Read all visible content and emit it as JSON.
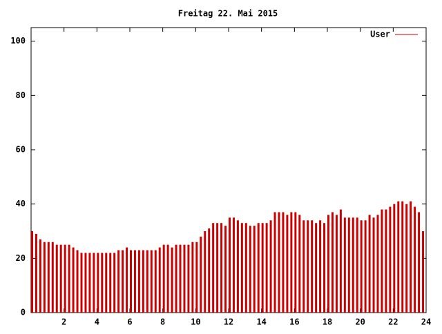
{
  "chart_data": {
    "type": "impulse",
    "title": "Freitag 22. Mai 2015",
    "x": [
      0,
      0.25,
      0.5,
      0.75,
      1,
      1.25,
      1.5,
      1.75,
      2,
      2.25,
      2.5,
      2.75,
      3,
      3.25,
      3.5,
      3.75,
      4,
      4.25,
      4.5,
      4.75,
      5,
      5.25,
      5.5,
      5.75,
      6,
      6.25,
      6.5,
      6.75,
      7,
      7.25,
      7.5,
      7.75,
      8,
      8.25,
      8.5,
      8.75,
      9,
      9.25,
      9.5,
      9.75,
      10,
      10.25,
      10.5,
      10.75,
      11,
      11.25,
      11.5,
      11.75,
      12,
      12.25,
      12.5,
      12.75,
      13,
      13.25,
      13.5,
      13.75,
      14,
      14.25,
      14.5,
      14.75,
      15,
      15.25,
      15.5,
      15.75,
      16,
      16.25,
      16.5,
      16.75,
      17,
      17.25,
      17.5,
      17.75,
      18,
      18.25,
      18.5,
      18.75,
      19,
      19.25,
      19.5,
      19.75,
      20,
      20.25,
      20.5,
      20.75,
      21,
      21.25,
      21.5,
      21.75,
      22,
      22.25,
      22.5,
      22.75,
      23,
      23.25,
      23.5,
      23.75
    ],
    "series": [
      {
        "name": "User",
        "color": "#cc0000",
        "values": [
          30,
          29,
          27,
          26,
          26,
          26,
          25,
          25,
          25,
          25,
          24,
          23,
          22,
          22,
          22,
          22,
          22,
          22,
          22,
          22,
          22,
          23,
          23,
          24,
          23,
          23,
          23,
          23,
          23,
          23,
          23,
          24,
          25,
          25,
          24,
          25,
          25,
          25,
          25,
          26,
          26,
          28,
          30,
          31,
          33,
          33,
          33,
          32,
          35,
          35,
          34,
          33,
          33,
          32,
          32,
          33,
          33,
          33,
          34,
          37,
          37,
          37,
          36,
          37,
          37,
          36,
          34,
          34,
          34,
          33,
          34,
          33,
          36,
          37,
          36,
          38,
          35,
          35,
          35,
          35,
          34,
          34,
          36,
          35,
          36,
          38,
          38,
          39,
          40,
          41,
          41,
          40,
          41,
          39,
          37,
          30
        ]
      }
    ],
    "xlim": [
      0,
      24
    ],
    "xticks": [
      2,
      4,
      6,
      8,
      10,
      12,
      14,
      16,
      18,
      20,
      22,
      24
    ],
    "ylim": [
      0,
      105
    ],
    "yticks": [
      0,
      20,
      40,
      60,
      80,
      100
    ],
    "legend": "top-right"
  }
}
